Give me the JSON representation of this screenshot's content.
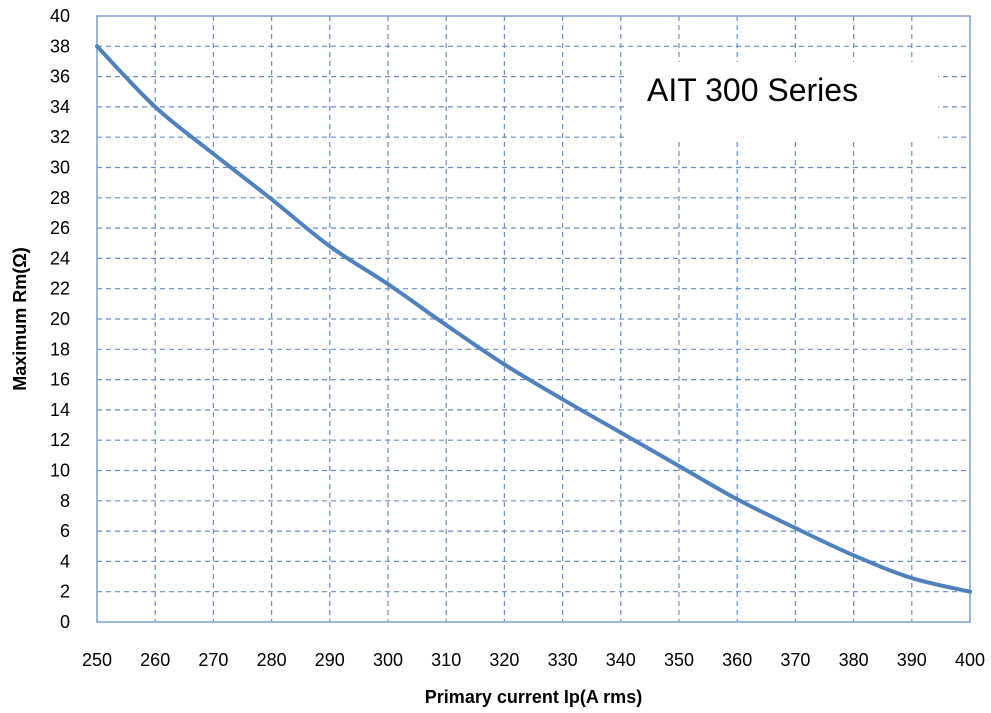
{
  "chart_data": {
    "type": "line",
    "title": "",
    "xlabel": "Primary current Ip(A rms)",
    "ylabel": "Maximum Rm(Ω)",
    "xlim": [
      250,
      400
    ],
    "ylim": [
      0,
      40
    ],
    "x_ticks": [
      250,
      260,
      270,
      280,
      290,
      300,
      310,
      320,
      330,
      340,
      350,
      360,
      370,
      380,
      390,
      400
    ],
    "y_ticks": [
      0,
      2,
      4,
      6,
      8,
      10,
      12,
      14,
      16,
      18,
      20,
      22,
      24,
      26,
      28,
      30,
      32,
      34,
      36,
      38,
      40
    ],
    "grid": true,
    "legend": "none",
    "annotation": "AIT 300 Series",
    "series": [
      {
        "color": "#4f81bd",
        "x": [
          250,
          260,
          270,
          280,
          290,
          300,
          310,
          320,
          330,
          340,
          350,
          360,
          370,
          380,
          390,
          400
        ],
        "y": [
          38.0,
          34.0,
          30.9,
          27.9,
          24.8,
          22.3,
          19.6,
          17.0,
          14.7,
          12.5,
          10.3,
          8.1,
          6.2,
          4.4,
          2.9,
          2.0
        ]
      }
    ]
  }
}
